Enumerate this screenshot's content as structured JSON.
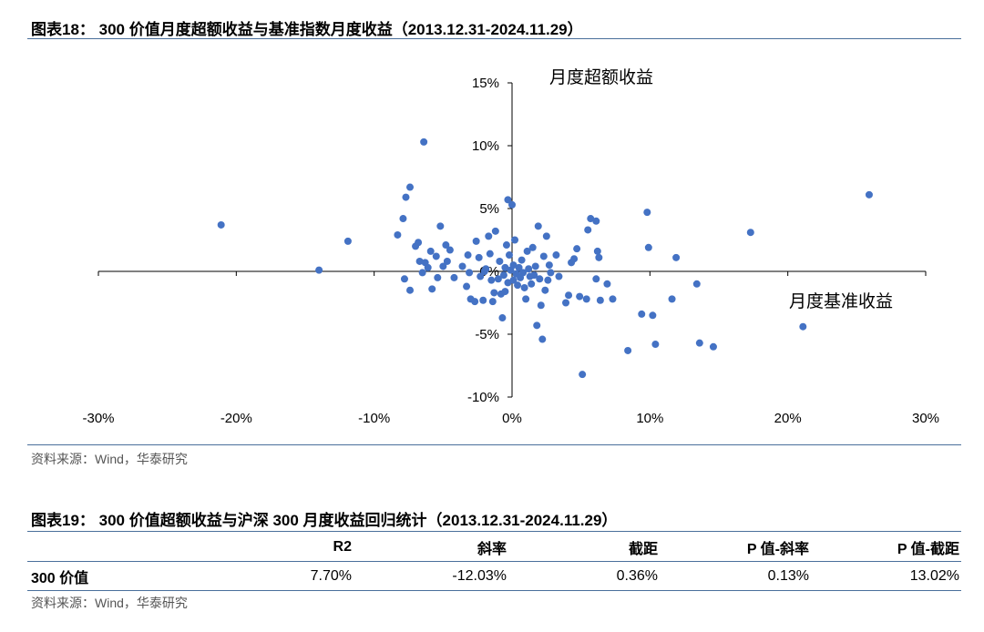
{
  "fig18": {
    "title": "图表18：  300 价值月度超额收益与基准指数月度收益（2013.12.31-2024.11.29）",
    "source": "资料来源：Wind，华泰研究"
  },
  "fig19": {
    "title": "图表19：  300 价值超额收益与沪深 300 月度收益回归统计（2013.12.31-2024.11.29）",
    "headers": [
      "",
      "R2",
      "斜率",
      "截距",
      "P 值-斜率",
      "P 值-截距"
    ],
    "row": {
      "name": "300 价值",
      "r2": "7.70%",
      "slope": "-12.03%",
      "intercept": "0.36%",
      "p_slope": "0.13%",
      "p_intercept": "13.02%"
    },
    "source": "资料来源：Wind，华泰研究"
  },
  "colors": {
    "marker": "#4472c4",
    "rule": "#4a6f9b",
    "axis": "#000000"
  },
  "chart_data": {
    "type": "scatter",
    "xlabel": "月度基准收益",
    "ylabel": "月度超额收益",
    "xlim": [
      -30,
      30
    ],
    "ylim": [
      -10,
      15
    ],
    "xticks": [
      "-30%",
      "-20%",
      "-10%",
      "0%",
      "10%",
      "20%",
      "30%"
    ],
    "yticks": [
      "-10%",
      "-5%",
      "0%",
      "5%",
      "10%",
      "15%"
    ],
    "grid": false,
    "points": [
      [
        -21.1,
        3.7
      ],
      [
        -14.0,
        0.1
      ],
      [
        -11.9,
        2.4
      ],
      [
        -8.3,
        2.9
      ],
      [
        -7.9,
        4.2
      ],
      [
        -7.7,
        5.9
      ],
      [
        -7.4,
        6.7
      ],
      [
        -6.4,
        10.3
      ],
      [
        -7.8,
        -0.6
      ],
      [
        -7.4,
        -1.5
      ],
      [
        -7.0,
        2.0
      ],
      [
        -6.8,
        2.3
      ],
      [
        -6.7,
        0.8
      ],
      [
        -6.5,
        -0.1
      ],
      [
        -6.3,
        0.7
      ],
      [
        -6.1,
        0.3
      ],
      [
        -5.9,
        1.6
      ],
      [
        -5.8,
        -1.4
      ],
      [
        -5.5,
        1.2
      ],
      [
        -5.4,
        -0.5
      ],
      [
        -5.2,
        3.6
      ],
      [
        -5.0,
        0.4
      ],
      [
        -4.8,
        2.1
      ],
      [
        -4.7,
        0.8
      ],
      [
        -4.5,
        1.7
      ],
      [
        -4.2,
        -0.5
      ],
      [
        -3.6,
        0.4
      ],
      [
        -3.3,
        -1.2
      ],
      [
        -3.2,
        1.3
      ],
      [
        -3.1,
        -0.1
      ],
      [
        -3.0,
        -2.2
      ],
      [
        -2.7,
        -2.4
      ],
      [
        -2.6,
        2.4
      ],
      [
        -2.4,
        1.1
      ],
      [
        -2.3,
        -0.4
      ],
      [
        -2.1,
        -2.3
      ],
      [
        -2.0,
        0.0
      ],
      [
        -1.9,
        0.2
      ],
      [
        -1.7,
        2.8
      ],
      [
        -1.6,
        1.4
      ],
      [
        -1.5,
        -0.7
      ],
      [
        -1.4,
        -2.4
      ],
      [
        -1.3,
        -1.7
      ],
      [
        -1.2,
        3.2
      ],
      [
        -1.0,
        -0.6
      ],
      [
        -0.9,
        0.8
      ],
      [
        -0.8,
        -1.8
      ],
      [
        -0.7,
        -3.7
      ],
      [
        -0.6,
        -0.3
      ],
      [
        -0.5,
        -1.6
      ],
      [
        -0.5,
        0.3
      ],
      [
        -0.4,
        2.1
      ],
      [
        -0.3,
        5.7
      ],
      [
        -0.3,
        -0.9
      ],
      [
        -0.2,
        1.3
      ],
      [
        -0.1,
        0.1
      ],
      [
        0.0,
        5.3
      ],
      [
        0.1,
        -0.7
      ],
      [
        0.1,
        0.5
      ],
      [
        0.2,
        2.5
      ],
      [
        0.3,
        -0.2
      ],
      [
        0.4,
        -1.1
      ],
      [
        0.5,
        0.3
      ],
      [
        0.6,
        -0.5
      ],
      [
        0.7,
        0.9
      ],
      [
        0.8,
        -0.1
      ],
      [
        0.9,
        -1.3
      ],
      [
        1.0,
        -2.2
      ],
      [
        1.1,
        1.6
      ],
      [
        1.2,
        0.2
      ],
      [
        1.3,
        -0.4
      ],
      [
        1.4,
        -1.0
      ],
      [
        1.5,
        1.9
      ],
      [
        1.6,
        -0.3
      ],
      [
        1.7,
        0.4
      ],
      [
        1.8,
        -4.3
      ],
      [
        1.9,
        3.6
      ],
      [
        2.0,
        -0.6
      ],
      [
        2.1,
        -2.7
      ],
      [
        2.2,
        -5.4
      ],
      [
        2.3,
        1.2
      ],
      [
        2.4,
        -1.5
      ],
      [
        2.5,
        2.8
      ],
      [
        2.6,
        -0.7
      ],
      [
        2.7,
        0.5
      ],
      [
        2.8,
        -0.1
      ],
      [
        3.2,
        1.3
      ],
      [
        3.4,
        -0.4
      ],
      [
        3.9,
        -2.5
      ],
      [
        4.1,
        -1.9
      ],
      [
        4.3,
        0.7
      ],
      [
        4.5,
        1.0
      ],
      [
        4.7,
        1.8
      ],
      [
        4.9,
        -2.0
      ],
      [
        5.1,
        -8.2
      ],
      [
        5.4,
        -2.2
      ],
      [
        5.5,
        3.3
      ],
      [
        5.7,
        4.2
      ],
      [
        6.1,
        4.0
      ],
      [
        6.2,
        1.6
      ],
      [
        6.3,
        1.1
      ],
      [
        6.1,
        -0.6
      ],
      [
        6.4,
        -2.3
      ],
      [
        6.9,
        -1.0
      ],
      [
        7.3,
        -2.2
      ],
      [
        8.4,
        -6.3
      ],
      [
        9.4,
        -3.4
      ],
      [
        9.8,
        4.7
      ],
      [
        9.9,
        1.9
      ],
      [
        10.2,
        -3.5
      ],
      [
        10.4,
        -5.8
      ],
      [
        11.6,
        -2.2
      ],
      [
        11.9,
        1.1
      ],
      [
        13.4,
        -1.0
      ],
      [
        13.6,
        -5.7
      ],
      [
        14.6,
        -6.0
      ],
      [
        17.3,
        3.1
      ],
      [
        21.1,
        -4.4
      ],
      [
        25.9,
        6.1
      ]
    ]
  }
}
